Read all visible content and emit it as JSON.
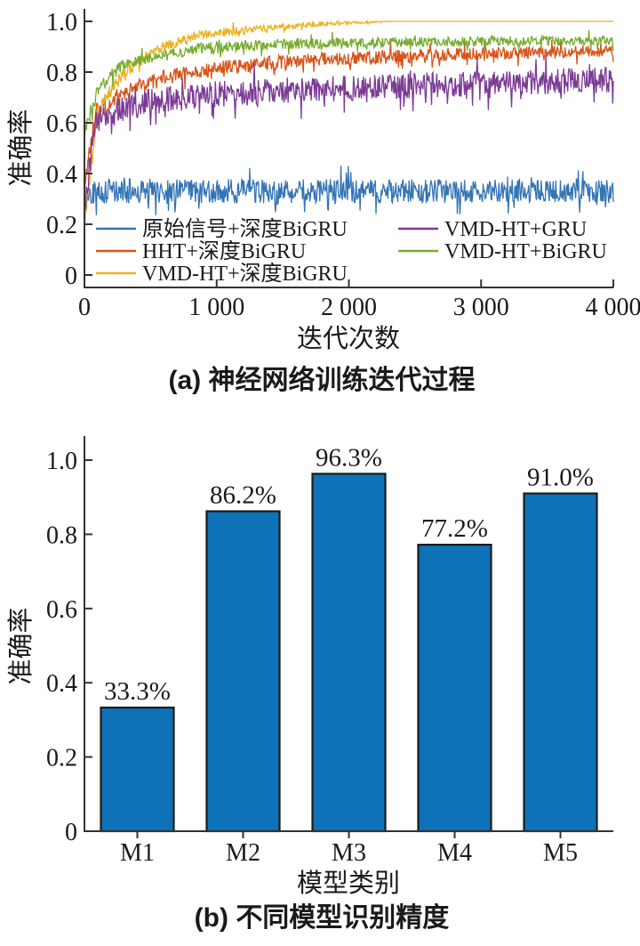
{
  "page": {
    "background": "#ffffff",
    "text_color": "#1A1A1A",
    "axis_color": "#333333"
  },
  "chart_data": [
    {
      "id": "a",
      "type": "line",
      "caption": "(a) 神经网络训练迭代过程",
      "xlabel": "迭代次数",
      "ylabel": "准确率",
      "xlim": [
        0,
        4000
      ],
      "ylim": [
        0,
        1.0
      ],
      "xticks": [
        0,
        1000,
        2000,
        3000,
        4000
      ],
      "xtick_labels": [
        "0",
        "1 000",
        "2 000",
        "3 000",
        "4 000"
      ],
      "yticks": [
        0,
        0.2,
        0.4,
        0.6,
        0.8,
        1.0
      ],
      "ytick_labels": [
        "0",
        "0.2",
        "0.4",
        "0.6",
        "0.8",
        "1.0"
      ],
      "grid": false,
      "legend_position": "inside-bottom-left",
      "legend_columns": [
        [
          0,
          1,
          2
        ],
        [
          3,
          4
        ]
      ],
      "series": [
        {
          "name": "原始信号+深度BiGRU",
          "color": "#3374B5",
          "final_accuracy": 0.33,
          "trend": [
            [
              0,
              0.26
            ],
            [
              40,
              0.33
            ],
            [
              4000,
              0.33
            ]
          ],
          "noise": [
            [
              0,
              0.05
            ],
            [
              4000,
              0.045
            ]
          ]
        },
        {
          "name": "HHT+深度BiGRU",
          "color": "#D95319",
          "final_accuracy": 0.88,
          "trend": [
            [
              0,
              0.33
            ],
            [
              80,
              0.64
            ],
            [
              300,
              0.72
            ],
            [
              600,
              0.78
            ],
            [
              1000,
              0.815
            ],
            [
              1600,
              0.845
            ],
            [
              2400,
              0.865
            ],
            [
              4000,
              0.885
            ]
          ],
          "noise": [
            [
              0,
              0.04
            ],
            [
              600,
              0.03
            ],
            [
              4000,
              0.022
            ]
          ]
        },
        {
          "name": "VMD-HT+深度BiGRU",
          "color": "#EDB120",
          "final_accuracy": 1.0,
          "trend": [
            [
              0,
              0.2
            ],
            [
              100,
              0.65
            ],
            [
              300,
              0.8
            ],
            [
              600,
              0.9
            ],
            [
              900,
              0.95
            ],
            [
              1400,
              0.975
            ],
            [
              2000,
              0.995
            ],
            [
              2300,
              1.0
            ],
            [
              4000,
              1.0
            ]
          ],
          "noise": [
            [
              0,
              0.03
            ],
            [
              900,
              0.018
            ],
            [
              1600,
              0.012
            ],
            [
              2100,
              0.005
            ],
            [
              2400,
              0
            ],
            [
              4000,
              0
            ]
          ]
        },
        {
          "name": "VMD-HT+GRU",
          "color": "#7C3A96",
          "final_accuracy": 0.78,
          "trend": [
            [
              0,
              0.25
            ],
            [
              80,
              0.62
            ],
            [
              400,
              0.675
            ],
            [
              900,
              0.71
            ],
            [
              1600,
              0.73
            ],
            [
              2600,
              0.75
            ],
            [
              4000,
              0.77
            ]
          ],
          "noise": [
            [
              0,
              0.06
            ],
            [
              600,
              0.052
            ],
            [
              4000,
              0.05
            ]
          ]
        },
        {
          "name": "VMD-HT+BiGRU",
          "color": "#77AC30",
          "final_accuracy": 0.92,
          "trend": [
            [
              0,
              0.58
            ],
            [
              120,
              0.75
            ],
            [
              300,
              0.83
            ],
            [
              600,
              0.87
            ],
            [
              900,
              0.895
            ],
            [
              1500,
              0.91
            ],
            [
              2500,
              0.92
            ],
            [
              4000,
              0.925
            ]
          ],
          "noise": [
            [
              0,
              0.03
            ],
            [
              400,
              0.022
            ],
            [
              4000,
              0.018
            ]
          ]
        }
      ]
    },
    {
      "id": "b",
      "type": "bar",
      "caption": "(b) 不同模型识别精度",
      "xlabel": "模型类别",
      "ylabel": "准确率",
      "categories": [
        "M1",
        "M2",
        "M3",
        "M4",
        "M5"
      ],
      "values": [
        0.333,
        0.862,
        0.963,
        0.772,
        0.91
      ],
      "value_labels": [
        "33.3%",
        "86.2%",
        "96.3%",
        "77.2%",
        "91.0%"
      ],
      "ylim": [
        0,
        1.0
      ],
      "yticks": [
        0,
        0.2,
        0.4,
        0.6,
        0.8,
        1.0
      ],
      "ytick_labels": [
        "0",
        "0.2",
        "0.4",
        "0.6",
        "0.8",
        "1.0"
      ],
      "bar_color": "#0E72B8",
      "bar_edge_color": "#1B1B1B",
      "grid": false
    }
  ]
}
